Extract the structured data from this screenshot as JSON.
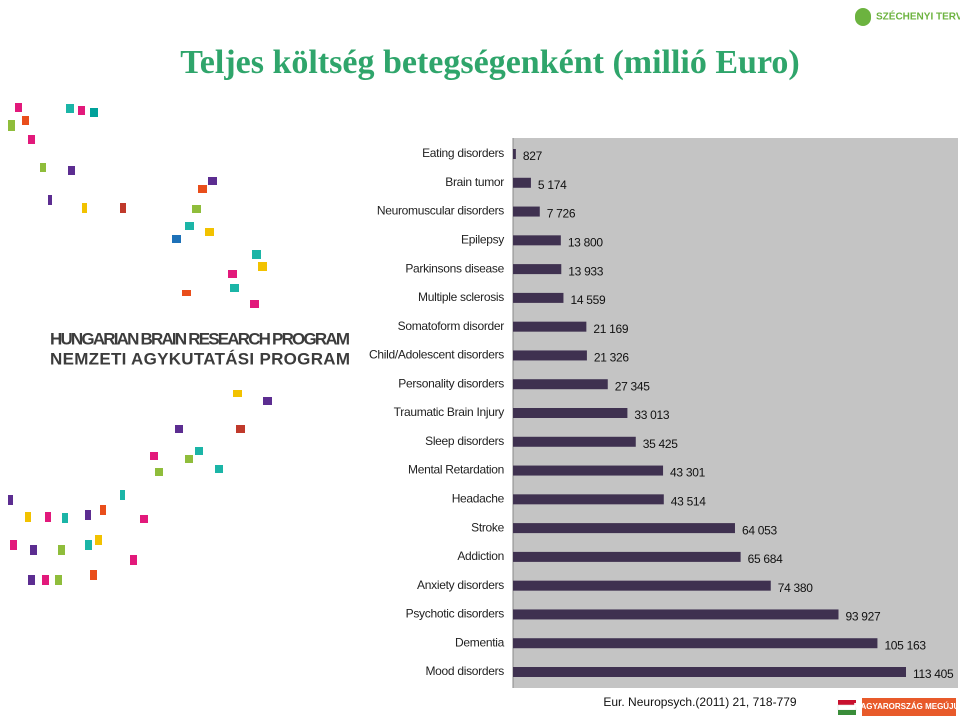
{
  "chart_data": {
    "type": "bar",
    "orientation": "horizontal",
    "title": "Teljes költség betegségenként (millió Euro)",
    "categories": [
      "Eating disorders",
      "Brain tumor",
      "Neuromuscular disorders",
      "Epilepsy",
      "Parkinsons disease",
      "Multiple sclerosis",
      "Somatoform disorder",
      "Child/Adolescent disorders",
      "Personality disorders",
      "Traumatic Brain Injury",
      "Sleep disorders",
      "Mental Retardation",
      "Headache",
      "Stroke",
      "Addiction",
      "Anxiety disorders",
      "Psychotic disorders",
      "Dementia",
      "Mood disorders"
    ],
    "values": [
      827,
      5174,
      7726,
      13800,
      13933,
      14559,
      21169,
      21326,
      27345,
      33013,
      35425,
      43301,
      43514,
      64053,
      65684,
      74380,
      93927,
      105163,
      113405
    ],
    "value_labels": [
      "827",
      "5 174",
      "7 726",
      "13 800",
      "13 933",
      "14 559",
      "21 169",
      "21 326",
      "27 345",
      "33 013",
      "35 425",
      "43 301",
      "43 514",
      "64 053",
      "65 684",
      "74 380",
      "93 927",
      "105 163",
      "113 405"
    ],
    "color": "#3f3150",
    "source": "Eur. Neuropsych.(2011) 21, 718-779"
  },
  "slide": {
    "logo_line1": "HUNGARIAN BRAIN RESEARCH PROGRAM",
    "logo_line2": "NEMZETI AGYKUTATÁSI PROGRAM",
    "top_logo": "SZÉCHENYI TERV",
    "bottom_logo": "MAGYARORSZÁG MEGÚJUL"
  }
}
